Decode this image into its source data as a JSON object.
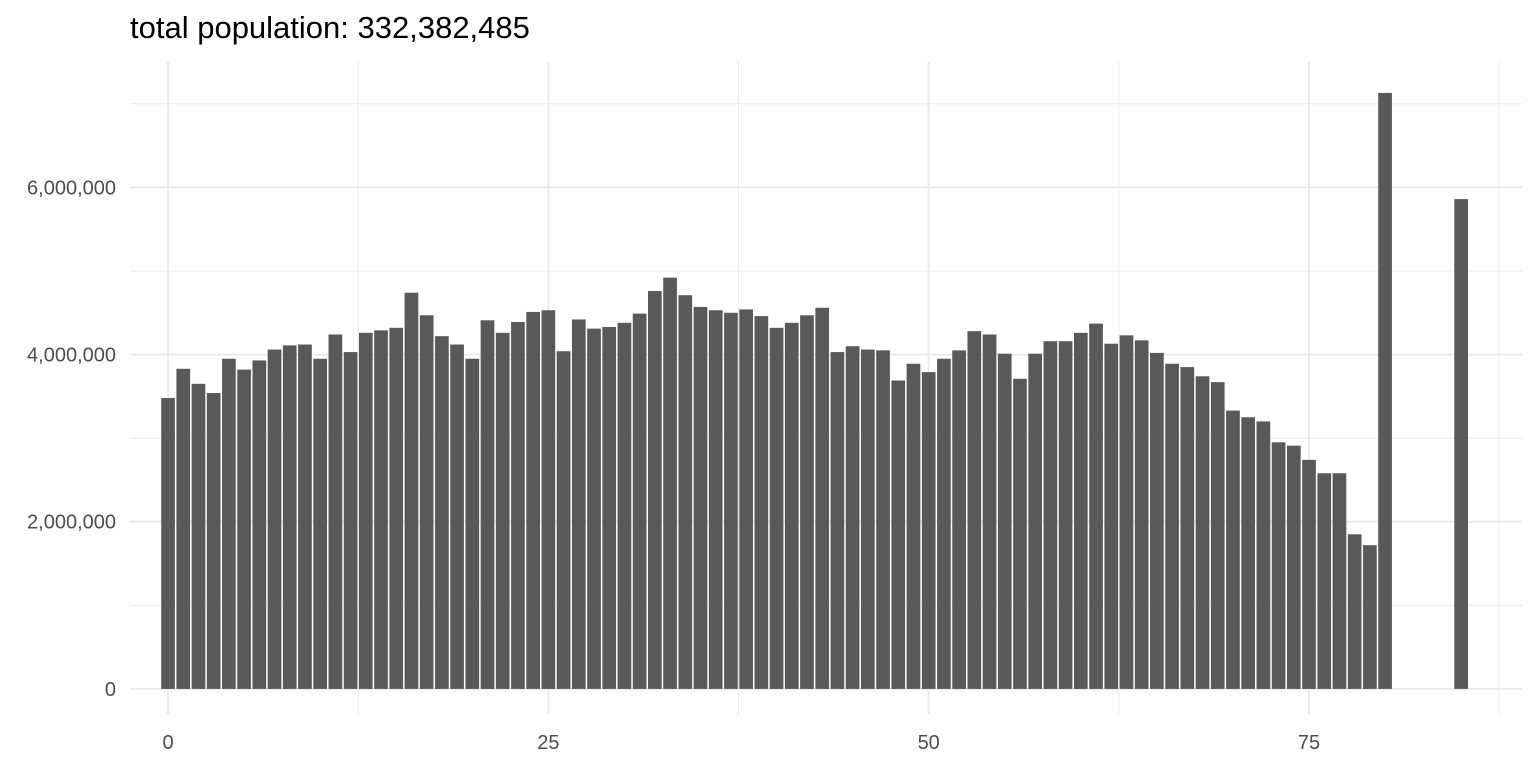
{
  "chart_data": {
    "type": "bar",
    "title": "total population: 332,382,485",
    "xlabel": "",
    "ylabel": "",
    "x": [
      0,
      1,
      2,
      3,
      4,
      5,
      6,
      7,
      8,
      9,
      10,
      11,
      12,
      13,
      14,
      15,
      16,
      17,
      18,
      19,
      20,
      21,
      22,
      23,
      24,
      25,
      26,
      27,
      28,
      29,
      30,
      31,
      32,
      33,
      34,
      35,
      36,
      37,
      38,
      39,
      40,
      41,
      42,
      43,
      44,
      45,
      46,
      47,
      48,
      49,
      50,
      51,
      52,
      53,
      54,
      55,
      56,
      57,
      58,
      59,
      60,
      61,
      62,
      63,
      64,
      65,
      66,
      67,
      68,
      69,
      70,
      71,
      72,
      73,
      74,
      75,
      76,
      77,
      78,
      79,
      80,
      85
    ],
    "values": [
      3480000,
      3830000,
      3650000,
      3540000,
      3950000,
      3820000,
      3930000,
      4060000,
      4110000,
      4120000,
      3950000,
      4240000,
      4030000,
      4260000,
      4290000,
      4320000,
      4740000,
      4470000,
      4220000,
      4120000,
      3950000,
      4410000,
      4260000,
      4390000,
      4510000,
      4530000,
      4040000,
      4420000,
      4310000,
      4330000,
      4380000,
      4490000,
      4760000,
      4920000,
      4710000,
      4570000,
      4530000,
      4500000,
      4540000,
      4460000,
      4320000,
      4380000,
      4470000,
      4560000,
      4030000,
      4100000,
      4060000,
      4050000,
      3690000,
      3890000,
      3790000,
      3950000,
      4050000,
      4280000,
      4240000,
      4010000,
      3710000,
      4010000,
      4160000,
      4160000,
      4260000,
      4370000,
      4130000,
      4230000,
      4170000,
      4020000,
      3890000,
      3850000,
      3740000,
      3670000,
      3330000,
      3250000,
      3200000,
      2950000,
      2910000,
      2740000,
      2580000,
      2580000,
      1850000,
      1720000,
      7130000,
      5860000
    ],
    "xlim": [
      -2.5,
      89
    ],
    "ylim": [
      -300000,
      7500000
    ],
    "xticks": [
      0,
      25,
      50,
      75
    ],
    "xtick_labels": [
      "0",
      "25",
      "50",
      "75"
    ],
    "yticks": [
      0,
      2000000,
      4000000,
      6000000
    ],
    "ytick_labels": [
      "0",
      "2,000,000",
      "4,000,000",
      "6,000,000"
    ],
    "grid": true,
    "legend": "none",
    "bar_color": "#595959",
    "grid_color": "#ebebeb"
  }
}
